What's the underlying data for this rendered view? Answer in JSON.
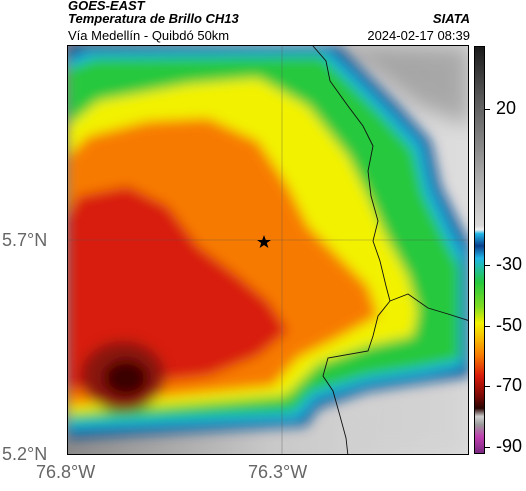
{
  "header": {
    "satellite": "GOES-EAST",
    "product": "Temperatura de Brillo CH13",
    "agency": "SIATA",
    "subtitle": "Vía Medellín - Quibdó 50km",
    "timestamp": "2024-02-17 08:39"
  },
  "map": {
    "lat_ticks": [
      "5.7°N",
      "5.2°N"
    ],
    "lon_ticks": [
      "76.8°W",
      "76.3°W"
    ],
    "marker_icon": "star-icon"
  },
  "colorbar": {
    "tick_labels": [
      "20",
      "-30",
      "-50",
      "-70",
      "-90"
    ],
    "palette": {
      "warm_gray": "#bdbdbd",
      "dark_gray": "#2e2e2e",
      "blue": "#0b3f8c",
      "cyan": "#1fb5e8",
      "green": "#25c83c",
      "yellow": "#f2f200",
      "orange": "#f77a00",
      "red": "#d81a0a",
      "dark_red": "#5a0a08",
      "magenta": "#c040b0"
    }
  }
}
